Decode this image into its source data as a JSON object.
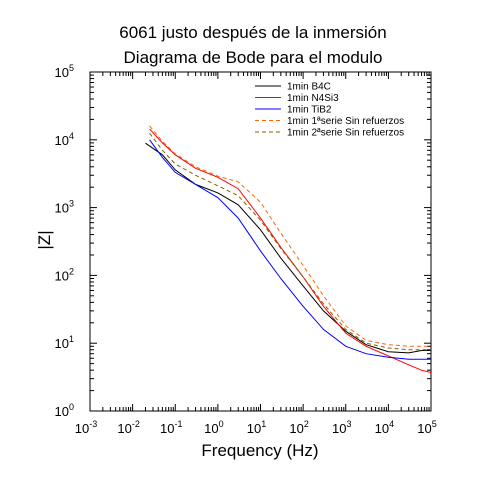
{
  "chart_data": {
    "type": "line",
    "title": "6061 justo después de la inmersión",
    "subtitle": "Diagrama de Bode para el modulo",
    "xlabel": "Frequency (Hz)",
    "ylabel": "|Z|",
    "xscale": "log",
    "yscale": "log",
    "xlim": [
      0.001,
      100000
    ],
    "ylim": [
      1,
      100000
    ],
    "x_ticks": [
      {
        "base": "10",
        "exp": "-3"
      },
      {
        "base": "10",
        "exp": "-2"
      },
      {
        "base": "10",
        "exp": "-1"
      },
      {
        "base": "10",
        "exp": "0"
      },
      {
        "base": "10",
        "exp": "1"
      },
      {
        "base": "10",
        "exp": "2"
      },
      {
        "base": "10",
        "exp": "3"
      },
      {
        "base": "10",
        "exp": "4"
      },
      {
        "base": "10",
        "exp": "5"
      }
    ],
    "y_ticks": [
      {
        "base": "10",
        "exp": "0"
      },
      {
        "base": "10",
        "exp": "1"
      },
      {
        "base": "10",
        "exp": "2"
      },
      {
        "base": "10",
        "exp": "3"
      },
      {
        "base": "10",
        "exp": "4"
      },
      {
        "base": "10",
        "exp": "5"
      }
    ],
    "grid": false,
    "legend_position": "top-right",
    "series": [
      {
        "name": "1min B4C",
        "color": "#000000",
        "dash": "solid",
        "points": [
          [
            0.02,
            8900
          ],
          [
            0.05,
            6000
          ],
          [
            0.1,
            3600
          ],
          [
            0.3,
            2200
          ],
          [
            1,
            1650
          ],
          [
            3,
            1100
          ],
          [
            10,
            470
          ],
          [
            30,
            180
          ],
          [
            100,
            70
          ],
          [
            300,
            30
          ],
          [
            1000,
            15
          ],
          [
            3000,
            9.5
          ],
          [
            10000,
            7.5
          ],
          [
            30000,
            7.2
          ],
          [
            60000,
            7.8
          ],
          [
            100000,
            7.8
          ]
        ]
      },
      {
        "name": "1min N4Si3",
        "color": "#ff0000",
        "dash": "solid",
        "points": [
          [
            0.025,
            14500
          ],
          [
            0.05,
            9000
          ],
          [
            0.1,
            6000
          ],
          [
            0.3,
            3800
          ],
          [
            1,
            2800
          ],
          [
            3,
            1900
          ],
          [
            10,
            700
          ],
          [
            30,
            260
          ],
          [
            100,
            95
          ],
          [
            300,
            35
          ],
          [
            1000,
            14
          ],
          [
            3000,
            9
          ],
          [
            10000,
            6.5
          ],
          [
            30000,
            4.8
          ],
          [
            60000,
            4
          ],
          [
            100000,
            3.7
          ]
        ]
      },
      {
        "name": "1min TiB2",
        "color": "#0000ff",
        "dash": "solid",
        "points": [
          [
            0.025,
            10000
          ],
          [
            0.05,
            5500
          ],
          [
            0.1,
            3300
          ],
          [
            0.3,
            2200
          ],
          [
            1,
            1400
          ],
          [
            3,
            700
          ],
          [
            10,
            230
          ],
          [
            30,
            90
          ],
          [
            100,
            35
          ],
          [
            300,
            16
          ],
          [
            1000,
            9
          ],
          [
            3000,
            7
          ],
          [
            10000,
            6.2
          ],
          [
            30000,
            5.8
          ],
          [
            100000,
            5.8
          ]
        ]
      },
      {
        "name": "1min 1ªserie Sin refuerzos",
        "color": "#ff6600",
        "dash": "dashed",
        "points": [
          [
            0.025,
            16000
          ],
          [
            0.05,
            9500
          ],
          [
            0.1,
            6200
          ],
          [
            0.3,
            4000
          ],
          [
            1,
            2900
          ],
          [
            3,
            2400
          ],
          [
            10,
            1200
          ],
          [
            30,
            420
          ],
          [
            100,
            140
          ],
          [
            300,
            50
          ],
          [
            1000,
            18
          ],
          [
            3000,
            11
          ],
          [
            10000,
            9.5
          ],
          [
            30000,
            9
          ],
          [
            100000,
            9
          ]
        ]
      },
      {
        "name": "1min 2ªserie Sin refuerzos",
        "color": "#806000",
        "dash": "dashed",
        "points": [
          [
            0.025,
            12500
          ],
          [
            0.05,
            7000
          ],
          [
            0.1,
            4400
          ],
          [
            0.3,
            3000
          ],
          [
            1,
            2100
          ],
          [
            3,
            1500
          ],
          [
            10,
            650
          ],
          [
            30,
            250
          ],
          [
            100,
            95
          ],
          [
            300,
            38
          ],
          [
            1000,
            16
          ],
          [
            3000,
            10
          ],
          [
            10000,
            8.5
          ],
          [
            30000,
            8
          ],
          [
            100000,
            8
          ]
        ]
      }
    ]
  }
}
